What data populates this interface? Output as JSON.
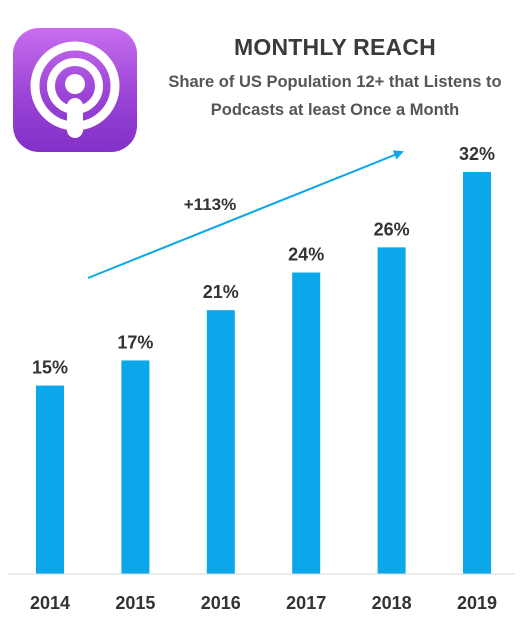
{
  "logo": {
    "icon": "podcasts-app-icon",
    "colors": [
      "#c86dee",
      "#8230c8"
    ]
  },
  "header": {
    "title": "MONTHLY REACH",
    "subtitle": "Share of US Population 12+ that Listens to Podcasts at least Once a Month"
  },
  "chart_data": {
    "type": "bar",
    "title": "MONTHLY REACH",
    "subtitle": "Share of US Population 12+ that Listens to Podcasts at least Once a Month",
    "categories": [
      "2014",
      "2015",
      "2016",
      "2017",
      "2018",
      "2019"
    ],
    "values": [
      15,
      17,
      21,
      24,
      26,
      32
    ],
    "data_labels": [
      "15%",
      "17%",
      "21%",
      "24%",
      "26%",
      "32%"
    ],
    "ylim": [
      0,
      32
    ],
    "bar_color": "#0aa8ea",
    "grid": false,
    "legend": "none",
    "annotation": {
      "text": "+113%",
      "type": "trend-arrow"
    }
  }
}
